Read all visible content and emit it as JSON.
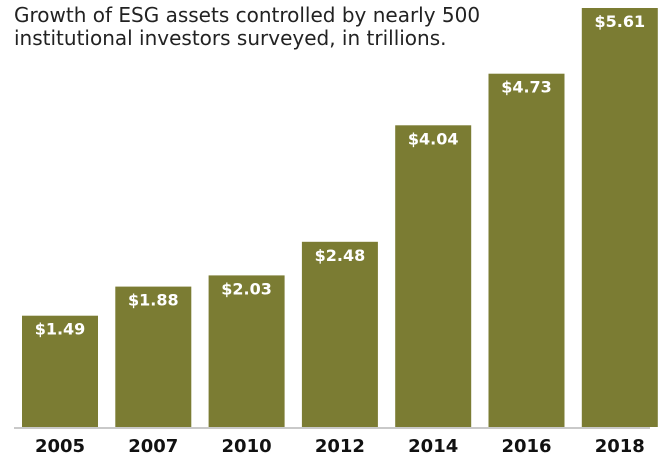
{
  "chart_data": {
    "type": "bar",
    "title": "Growth of ESG assets controlled by nearly 500 institutional investors surveyed, in trillions.",
    "categories": [
      "2005",
      "2007",
      "2010",
      "2012",
      "2014",
      "2016",
      "2018"
    ],
    "values": [
      1.49,
      1.88,
      2.03,
      2.48,
      4.04,
      4.73,
      5.61
    ],
    "data_labels": [
      "$1.49",
      "$1.88",
      "$2.03",
      "$2.48",
      "$4.04",
      "$4.73",
      "$5.61"
    ],
    "xlabel": "",
    "ylabel": "",
    "ylim": [
      0,
      5.61
    ],
    "grid": false,
    "bar_color": "#7b7c33",
    "baseline_color": "#c9c9c9"
  }
}
